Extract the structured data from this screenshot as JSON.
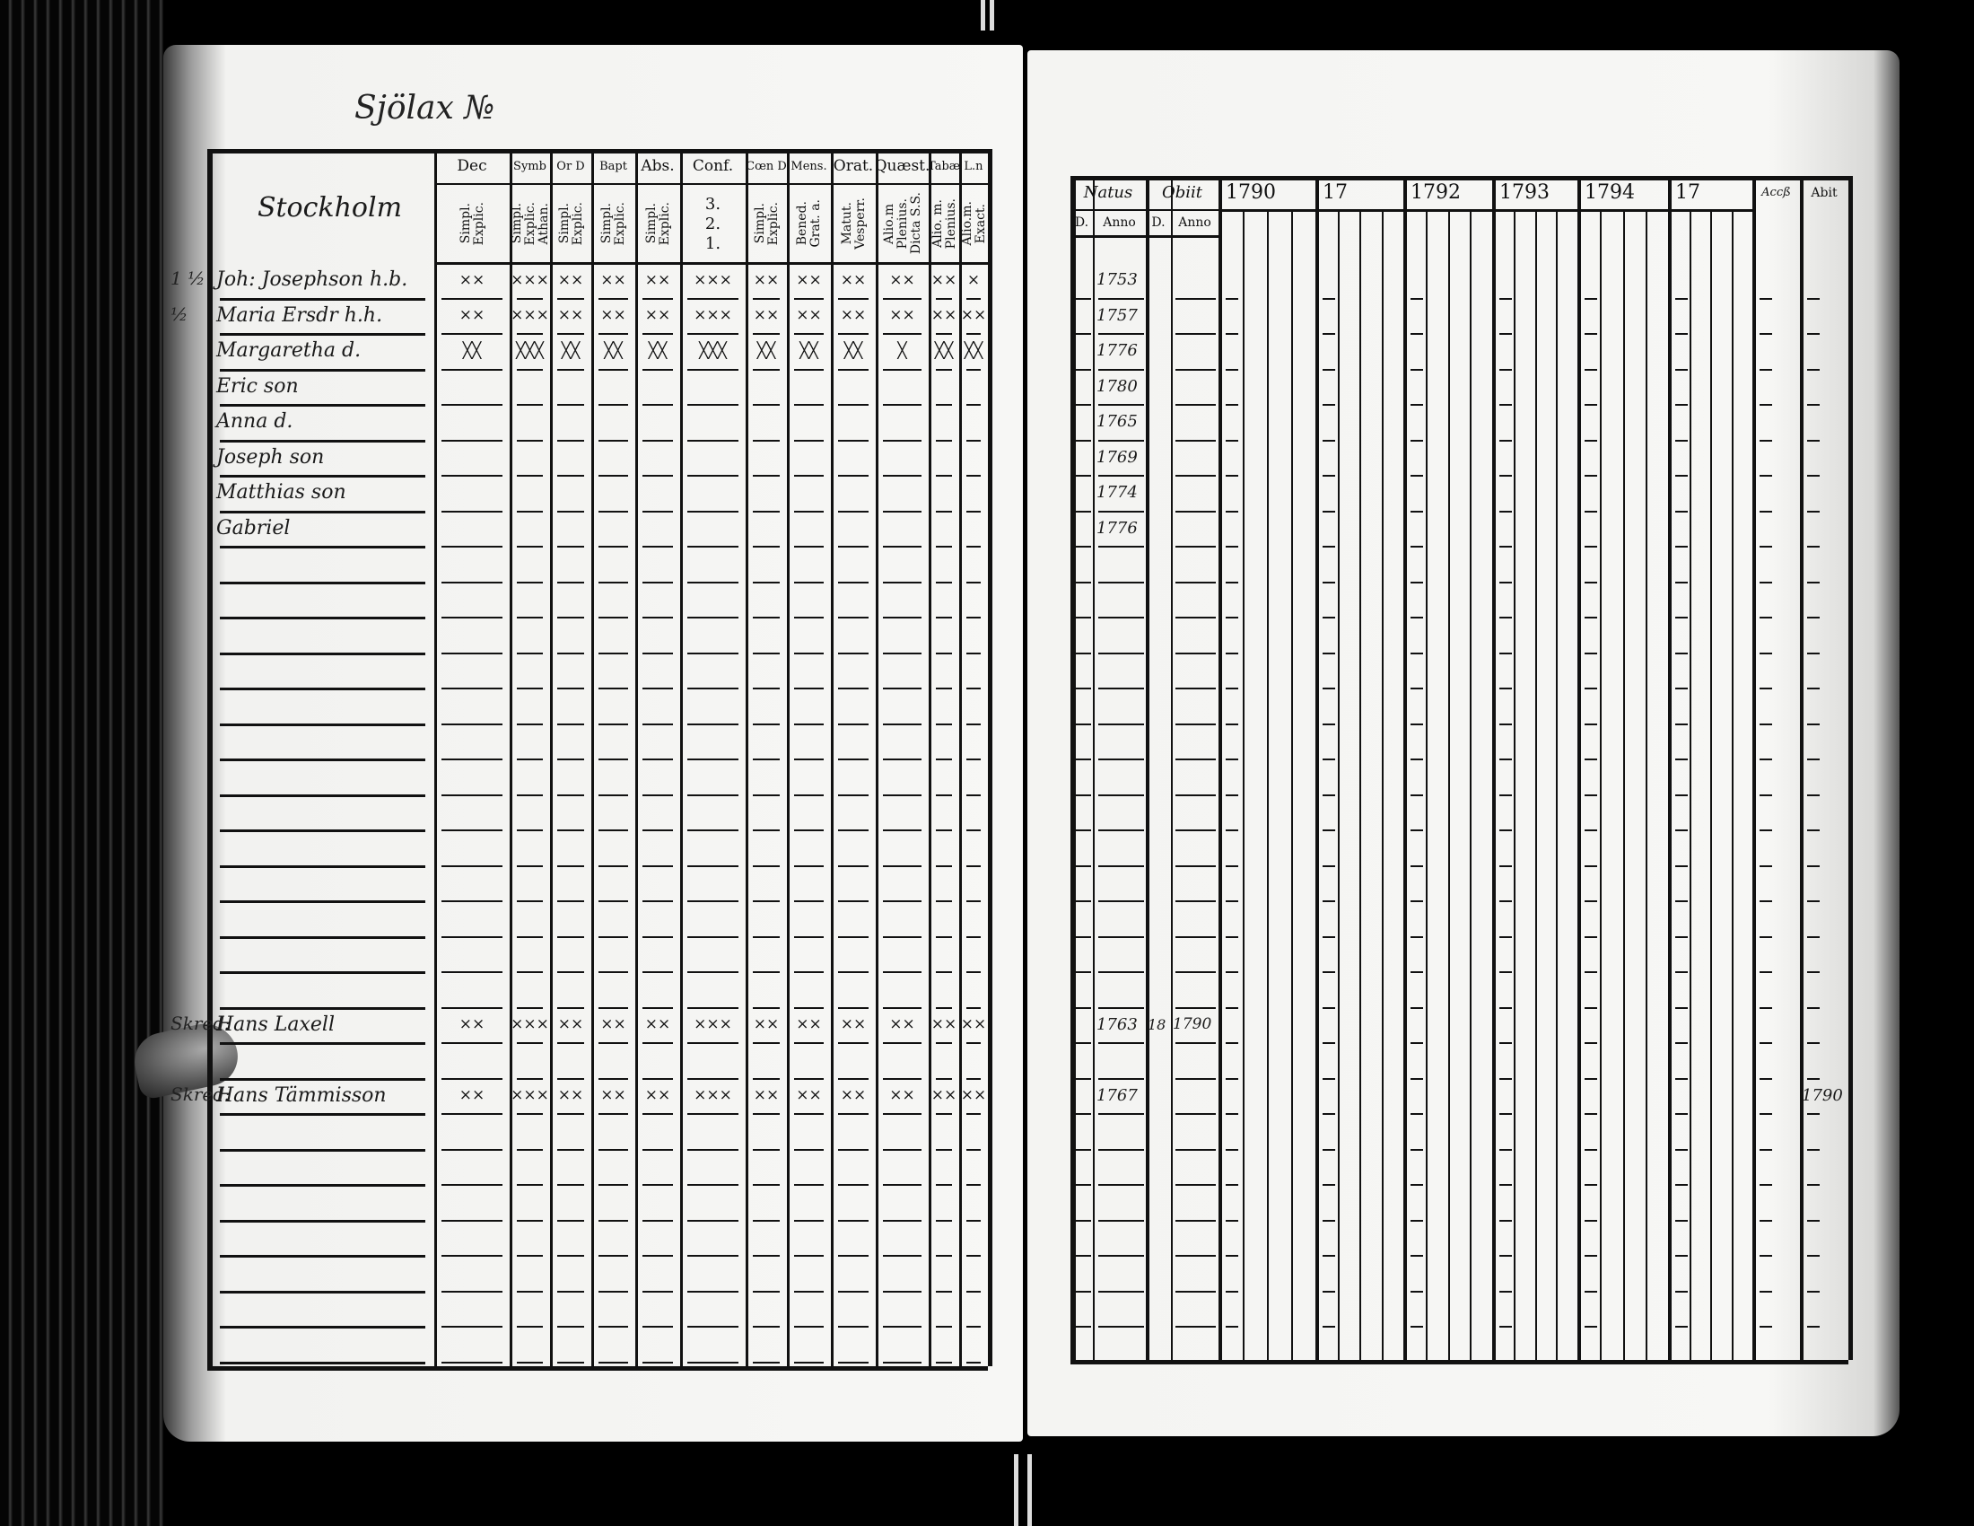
{
  "left_page": {
    "title": "Sjölax №",
    "place_header": "Stockholm",
    "columns": [
      {
        "head": "Dec",
        "sub": [
          "Explic.",
          "Simpl."
        ]
      },
      {
        "head": "Symb",
        "sub": [
          "Athan.",
          "Explic.",
          "Simpl."
        ]
      },
      {
        "head": "Or D",
        "sub": [
          "Explic.",
          "Simpl."
        ]
      },
      {
        "head": "Bapt",
        "sub": [
          "Explic.",
          "Simpl."
        ]
      },
      {
        "head": "Abs.",
        "sub": [
          "Explic.",
          "Simpl."
        ]
      },
      {
        "head": "Conf.",
        "sub": [
          "3.",
          "2.",
          "1."
        ]
      },
      {
        "head": "Cœn D",
        "sub": [
          "Explic.",
          "Simpl."
        ]
      },
      {
        "head": "Mens.",
        "sub": [
          "Grat. a.",
          "Bened."
        ]
      },
      {
        "head": "Orat.",
        "sub": [
          "Vesperr.",
          "Matut."
        ]
      },
      {
        "head": "Quæst.",
        "sub": [
          "Dicta S.S.",
          "Plenius.",
          "Alio.m"
        ]
      },
      {
        "head": "Tabæ",
        "sub": [
          "Plenius.",
          "Alio. m."
        ]
      },
      {
        "head": "L.n",
        "sub": [
          "Exact.",
          "Alio.m."
        ]
      }
    ],
    "persons": [
      {
        "row": 0,
        "margin": "1 ½",
        "name": "Joh: Josephson h.b.",
        "marks": [
          "××",
          "×××",
          "××",
          "××",
          "××",
          "×××",
          "××",
          "××",
          "××",
          "××",
          "××",
          "×"
        ]
      },
      {
        "row": 1,
        "margin": "½",
        "name": "Maria Ersdr h.h.",
        "marks": [
          "××",
          "×××",
          "××",
          "××",
          "××",
          "×××",
          "××",
          "××",
          "××",
          "××",
          "××",
          "××"
        ]
      },
      {
        "row": 2,
        "margin": "",
        "name": "Margaretha d.",
        "marks": [
          "╳╳",
          "╳╳╳",
          "╳╳",
          "╳╳",
          "╳╳",
          "╳╳╳",
          "╳╳",
          "╳╳",
          "╳╳",
          "╳",
          "╳╳",
          "╳╳"
        ]
      },
      {
        "row": 3,
        "margin": "",
        "name": "Eric son",
        "marks": []
      },
      {
        "row": 4,
        "margin": "",
        "name": "Anna d.",
        "marks": []
      },
      {
        "row": 5,
        "margin": "",
        "name": "Joseph son",
        "marks": []
      },
      {
        "row": 6,
        "margin": "",
        "name": "Matthias son",
        "marks": []
      },
      {
        "row": 7,
        "margin": "",
        "name": "Gabriel",
        "marks": []
      },
      {
        "row": 21,
        "margin": "Skred:",
        "name": "Hans Laxell",
        "marks": [
          "××",
          "×××",
          "××",
          "××",
          "××",
          "×××",
          "××",
          "××",
          "××",
          "××",
          "××",
          "××"
        ]
      },
      {
        "row": 23,
        "margin": "Skred:",
        "name": "Hans Tämmisson",
        "marks": [
          "××",
          "×××",
          "××",
          "××",
          "××",
          "×××",
          "××",
          "××",
          "××",
          "××",
          "××",
          "××"
        ]
      }
    ]
  },
  "right_page": {
    "headers": {
      "natus": "Natus",
      "obiit": "Obiit",
      "d": "D.",
      "anno": "Anno",
      "accessit": "Accß",
      "abiit": "Abit"
    },
    "years": [
      "1790",
      "17",
      "1792",
      "1793",
      "1794",
      "17"
    ],
    "entries": [
      {
        "row": 0,
        "natus_anno": "1753"
      },
      {
        "row": 1,
        "natus_anno": "1757"
      },
      {
        "row": 2,
        "natus_anno": "1776"
      },
      {
        "row": 3,
        "natus_anno": "1780"
      },
      {
        "row": 4,
        "natus_anno": "1765"
      },
      {
        "row": 5,
        "natus_anno": "1769"
      },
      {
        "row": 6,
        "natus_anno": "1774"
      },
      {
        "row": 7,
        "natus_anno": "1776"
      },
      {
        "row": 21,
        "natus_anno": "1763",
        "obiit_d": "18",
        "obiit_anno": "1790"
      },
      {
        "row": 23,
        "natus_anno": "1767",
        "abiit": "1790"
      }
    ]
  }
}
